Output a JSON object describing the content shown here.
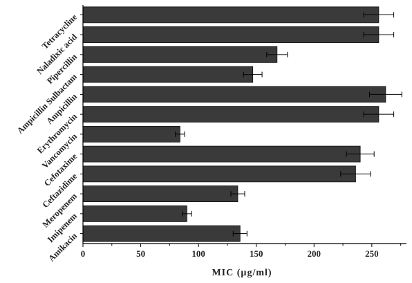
{
  "chart_data": {
    "type": "bar",
    "orientation": "horizontal",
    "title": "",
    "xlabel": "MIC (µg/ml)",
    "ylabel": "",
    "xlim": [
      0,
      280
    ],
    "xticks": [
      0,
      50,
      100,
      150,
      200,
      250
    ],
    "grid": false,
    "categories": [
      "Tetracycline",
      "Naladixic acid",
      "Pipercillin",
      "Ampicillin Sulbactam",
      "Ampicillin",
      "Erythromycin",
      "Vancomycin",
      "Cefotaxime",
      "Ceftazidime",
      "Meropenem",
      "Imipenem",
      "Amikacin"
    ],
    "series": [
      {
        "values": [
          256,
          256,
          168,
          147,
          262,
          256,
          84,
          240,
          236,
          134,
          90,
          136
        ],
        "errors": [
          13,
          13,
          9,
          8,
          14,
          13,
          4,
          12,
          13,
          6,
          4,
          6
        ],
        "color": "#3a3a3a"
      }
    ]
  }
}
